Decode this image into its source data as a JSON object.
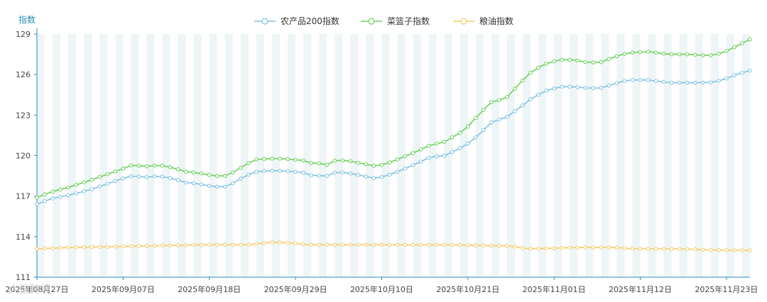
{
  "chart_data": {
    "type": "line",
    "title": "",
    "ylabel": "指数",
    "ylim": [
      111,
      129
    ],
    "yticks": [
      111,
      114,
      117,
      120,
      123,
      126,
      129
    ],
    "grid": "alternating-vertical-bands",
    "legend_position": "top-center",
    "x_tick_labels": [
      "2025年08月27日",
      "2025年09月07日",
      "2025年09月18日",
      "2025年09月29日",
      "2025年10月10日",
      "2025年10月21日",
      "2025年11月01日",
      "2025年11月12日",
      "2025年11月23日"
    ],
    "x_tick_indices": [
      0,
      11,
      22,
      33,
      44,
      55,
      66,
      77,
      88
    ],
    "num_points": 92,
    "series": [
      {
        "name": "农产品200指数",
        "color": "#7fc3df",
        "anchors": [
          [
            0,
            116.4
          ],
          [
            2,
            116.8
          ],
          [
            5,
            117.1
          ],
          [
            8,
            117.5
          ],
          [
            12,
            118.2
          ],
          [
            14,
            118.5
          ],
          [
            16,
            118.4
          ],
          [
            18,
            118.5
          ],
          [
            20,
            118.3
          ],
          [
            22,
            118.0
          ],
          [
            24,
            117.9
          ],
          [
            26,
            117.7
          ],
          [
            28,
            117.7
          ],
          [
            30,
            118.3
          ],
          [
            32,
            118.8
          ],
          [
            35,
            118.9
          ],
          [
            38,
            118.8
          ],
          [
            40,
            118.7
          ],
          [
            41,
            118.3
          ],
          [
            42,
            118.7
          ],
          [
            43,
            118.4
          ],
          [
            44,
            118.8
          ],
          [
            46,
            118.7
          ],
          [
            48,
            118.5
          ],
          [
            50,
            118.3
          ],
          [
            52,
            118.6
          ],
          [
            55,
            119.2
          ],
          [
            58,
            119.9
          ],
          [
            60,
            120.0
          ],
          [
            63,
            120.7
          ],
          [
            65,
            121.5
          ],
          [
            67,
            122.5
          ],
          [
            69,
            122.8
          ],
          [
            71,
            123.5
          ],
          [
            73,
            124.3
          ],
          [
            75,
            124.8
          ],
          [
            77,
            125.1
          ],
          [
            79,
            125.1
          ],
          [
            81,
            125.0
          ],
          [
            83,
            125.0
          ],
          [
            85,
            125.3
          ],
          [
            87,
            125.6
          ],
          [
            90,
            125.6
          ],
          [
            93,
            125.4
          ],
          [
            96,
            125.4
          ],
          [
            99,
            125.4
          ],
          [
            101,
            125.6
          ],
          [
            103,
            126.0
          ],
          [
            105,
            126.3
          ]
        ]
      },
      {
        "name": "菜篮子指数",
        "color": "#6ccf5a",
        "anchors": [
          [
            0,
            116.9
          ],
          [
            2,
            117.3
          ],
          [
            5,
            117.7
          ],
          [
            8,
            118.2
          ],
          [
            12,
            118.9
          ],
          [
            14,
            119.3
          ],
          [
            16,
            119.2
          ],
          [
            18,
            119.3
          ],
          [
            20,
            119.1
          ],
          [
            22,
            118.8
          ],
          [
            24,
            118.7
          ],
          [
            26,
            118.5
          ],
          [
            28,
            118.5
          ],
          [
            30,
            119.1
          ],
          [
            32,
            119.7
          ],
          [
            35,
            119.8
          ],
          [
            38,
            119.7
          ],
          [
            40,
            119.6
          ],
          [
            41,
            119.2
          ],
          [
            42,
            119.6
          ],
          [
            43,
            119.2
          ],
          [
            44,
            119.7
          ],
          [
            46,
            119.6
          ],
          [
            48,
            119.4
          ],
          [
            50,
            119.2
          ],
          [
            52,
            119.5
          ],
          [
            55,
            120.1
          ],
          [
            58,
            120.8
          ],
          [
            60,
            121.0
          ],
          [
            63,
            121.9
          ],
          [
            65,
            123.0
          ],
          [
            67,
            124.0
          ],
          [
            69,
            124.2
          ],
          [
            71,
            125.3
          ],
          [
            73,
            126.3
          ],
          [
            75,
            126.8
          ],
          [
            77,
            127.1
          ],
          [
            79,
            127.1
          ],
          [
            81,
            126.9
          ],
          [
            83,
            126.9
          ],
          [
            85,
            127.3
          ],
          [
            87,
            127.6
          ],
          [
            90,
            127.7
          ],
          [
            93,
            127.5
          ],
          [
            96,
            127.5
          ],
          [
            99,
            127.4
          ],
          [
            101,
            127.6
          ],
          [
            103,
            128.1
          ],
          [
            105,
            128.6
          ]
        ]
      },
      {
        "name": "粮油指数",
        "color": "#f3cc6a",
        "anchors": [
          [
            0,
            113.1
          ],
          [
            5,
            113.2
          ],
          [
            15,
            113.3
          ],
          [
            25,
            113.4
          ],
          [
            31,
            113.4
          ],
          [
            35,
            113.6
          ],
          [
            38,
            113.5
          ],
          [
            40,
            113.4
          ],
          [
            60,
            113.4
          ],
          [
            70,
            113.3
          ],
          [
            72,
            113.1
          ],
          [
            80,
            113.2
          ],
          [
            85,
            113.2
          ],
          [
            88,
            113.1
          ],
          [
            95,
            113.1
          ],
          [
            100,
            113.0
          ],
          [
            105,
            113.0
          ]
        ]
      }
    ]
  },
  "watermark": {
    "text": "大数跨境"
  }
}
